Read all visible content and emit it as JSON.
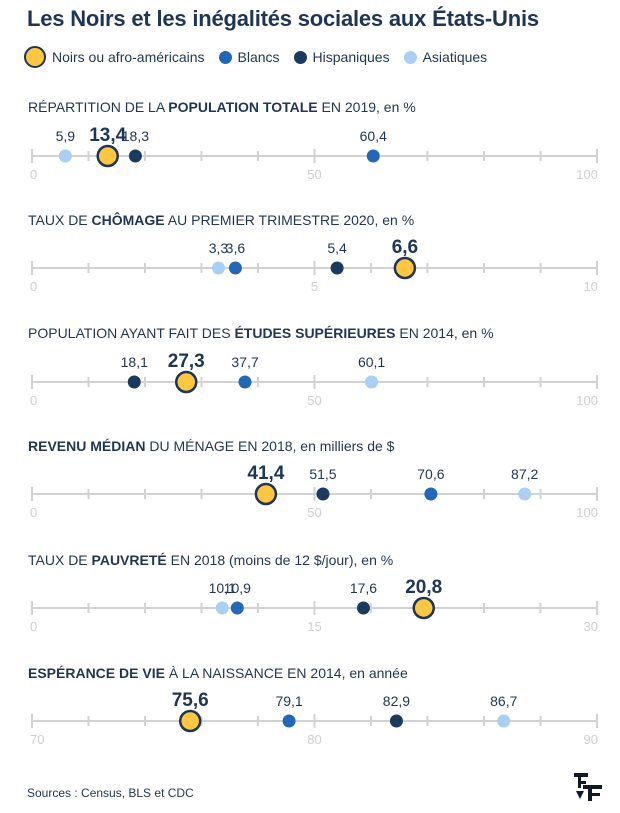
{
  "title": "Les Noirs et les inégalités sociales aux États-Unis",
  "legend": [
    {
      "label": "Noirs ou afro-américains",
      "color": "#fdc743",
      "highlight": true
    },
    {
      "label": "Blancs",
      "color": "#2567b7",
      "highlight": false
    },
    {
      "label": "Hispaniques",
      "color": "#1a3a5e",
      "highlight": false
    },
    {
      "label": "Asiatiques",
      "color": "#a9cff2",
      "highlight": false
    }
  ],
  "sources": "Sources : Census, BLS et CDC",
  "logo": "F",
  "chart_data": [
    {
      "type": "scatter",
      "title_pre": "RÉPARTITION DE LA ",
      "title_bold": "POPULATION TOTALE",
      "title_post": " EN 2019, en %",
      "xlim": [
        0,
        100
      ],
      "ticks": [
        "0",
        "50",
        "100"
      ],
      "tick_values": [
        0,
        50,
        100
      ],
      "series": [
        {
          "name": "Noirs ou afro-américains",
          "value": 13.4,
          "label": "13,4"
        },
        {
          "name": "Blancs",
          "value": 60.4,
          "label": "60,4"
        },
        {
          "name": "Hispaniques",
          "value": 18.3,
          "label": "18,3"
        },
        {
          "name": "Asiatiques",
          "value": 5.9,
          "label": "5,9"
        }
      ]
    },
    {
      "type": "scatter",
      "title_pre": "TAUX DE ",
      "title_bold": "CHÔMAGE",
      "title_post": " AU PREMIER TRIMESTRE 2020, en %",
      "xlim": [
        0,
        10
      ],
      "ticks": [
        "0",
        "5",
        "10"
      ],
      "tick_values": [
        0,
        5,
        10
      ],
      "series": [
        {
          "name": "Noirs ou afro-américains",
          "value": 6.6,
          "label": "6,6"
        },
        {
          "name": "Blancs",
          "value": 3.6,
          "label": "3,6"
        },
        {
          "name": "Hispaniques",
          "value": 5.4,
          "label": "5,4"
        },
        {
          "name": "Asiatiques",
          "value": 3.3,
          "label": "3,3"
        }
      ]
    },
    {
      "type": "scatter",
      "title_pre": "POPULATION AYANT FAIT DES ",
      "title_bold": "ÉTUDES SUPÉRIEURES",
      "title_post": " EN 2014, en %",
      "xlim": [
        0,
        100
      ],
      "ticks": [
        "0",
        "50",
        "100"
      ],
      "tick_values": [
        0,
        50,
        100
      ],
      "series": [
        {
          "name": "Noirs ou afro-américains",
          "value": 27.3,
          "label": "27,3"
        },
        {
          "name": "Blancs",
          "value": 37.7,
          "label": "37,7"
        },
        {
          "name": "Hispaniques",
          "value": 18.1,
          "label": "18,1"
        },
        {
          "name": "Asiatiques",
          "value": 60.1,
          "label": "60,1"
        }
      ]
    },
    {
      "type": "scatter",
      "title_pre": "",
      "title_bold": "REVENU MÉDIAN",
      "title_post": " DU MÉNAGE EN 2018, en milliers de $",
      "xlim": [
        0,
        100
      ],
      "ticks": [
        "0",
        "50",
        "100"
      ],
      "tick_values": [
        0,
        50,
        100
      ],
      "series": [
        {
          "name": "Noirs ou afro-américains",
          "value": 41.4,
          "label": "41,4"
        },
        {
          "name": "Blancs",
          "value": 70.6,
          "label": "70,6"
        },
        {
          "name": "Hispaniques",
          "value": 51.5,
          "label": "51,5"
        },
        {
          "name": "Asiatiques",
          "value": 87.2,
          "label": "87,2"
        }
      ]
    },
    {
      "type": "scatter",
      "title_pre": "TAUX DE ",
      "title_bold": "PAUVRETÉ",
      "title_post": " EN 2018 (moins de 12 $/jour), en %",
      "xlim": [
        0,
        30
      ],
      "ticks": [
        "0",
        "15",
        "30"
      ],
      "tick_values": [
        0,
        15,
        30
      ],
      "series": [
        {
          "name": "Noirs ou afro-américains",
          "value": 20.8,
          "label": "20,8"
        },
        {
          "name": "Blancs",
          "value": 10.9,
          "label": "10,9"
        },
        {
          "name": "Hispaniques",
          "value": 17.6,
          "label": "17,6"
        },
        {
          "name": "Asiatiques",
          "value": 10.1,
          "label": "10,1"
        }
      ]
    },
    {
      "type": "scatter",
      "title_pre": "",
      "title_bold": "ESPÉRANCE DE VIE",
      "title_post": " À LA NAISSANCE EN 2014, en année",
      "xlim": [
        70,
        90
      ],
      "ticks": [
        "70",
        "80",
        "90"
      ],
      "tick_values": [
        70,
        80,
        90
      ],
      "series": [
        {
          "name": "Noirs ou afro-américains",
          "value": 75.6,
          "label": "75,6"
        },
        {
          "name": "Blancs",
          "value": 79.1,
          "label": "79,1"
        },
        {
          "name": "Hispaniques",
          "value": 82.9,
          "label": "82,9"
        },
        {
          "name": "Asiatiques",
          "value": 86.7,
          "label": "86,7"
        }
      ]
    }
  ]
}
